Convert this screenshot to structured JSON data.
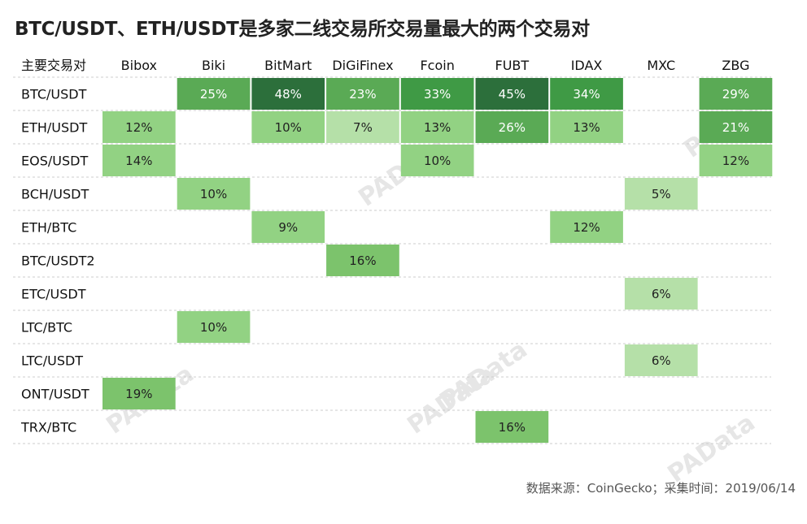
{
  "title": "BTC/USDT、ETH/USDT是多家二线交易所交易量最大的两个交易对",
  "source": "数据来源：CoinGecko；采集时间：2019/06/14",
  "watermark": "PAData",
  "colors": {
    "level1": "#b5e0a8",
    "level2": "#92d283",
    "level3": "#7cc36c",
    "level4": "#5aaa55",
    "level5": "#3f9a45",
    "level6": "#2c6f3b",
    "grid": "#cccccc",
    "text_dark": "#222222",
    "text_light": "#ffffff"
  },
  "chart_data": {
    "type": "heatmap",
    "title": "BTC/USDT、ETH/USDT是多家二线交易所交易量最大的两个交易对",
    "corner_label": "主要交易对",
    "columns": [
      "Bibox",
      "Biki",
      "BitMart",
      "DiGiFinex",
      "Fcoin",
      "FUBT",
      "IDAX",
      "MXC",
      "ZBG"
    ],
    "rows": [
      "BTC/USDT",
      "ETH/USDT",
      "EOS/USDT",
      "BCH/USDT",
      "ETH/BTC",
      "BTC/USDT2",
      "ETC/USDT",
      "LTC/BTC",
      "LTC/USDT",
      "ONT/USDT",
      "TRX/BTC"
    ],
    "unit": "%",
    "values": [
      [
        null,
        25,
        48,
        23,
        33,
        45,
        34,
        null,
        29
      ],
      [
        12,
        null,
        10,
        7,
        13,
        26,
        13,
        null,
        21
      ],
      [
        14,
        null,
        null,
        null,
        10,
        null,
        null,
        null,
        12
      ],
      [
        null,
        10,
        null,
        null,
        null,
        null,
        null,
        5,
        null
      ],
      [
        null,
        null,
        9,
        null,
        null,
        null,
        12,
        null,
        null
      ],
      [
        null,
        null,
        null,
        16,
        null,
        null,
        null,
        null,
        null
      ],
      [
        null,
        null,
        null,
        null,
        null,
        null,
        null,
        6,
        null
      ],
      [
        null,
        10,
        null,
        null,
        null,
        null,
        null,
        null,
        null
      ],
      [
        null,
        null,
        null,
        null,
        null,
        null,
        null,
        6,
        null
      ],
      [
        19,
        null,
        null,
        null,
        null,
        null,
        null,
        null,
        null
      ],
      [
        null,
        null,
        null,
        null,
        null,
        16,
        null,
        null,
        null
      ]
    ],
    "grid": true
  }
}
